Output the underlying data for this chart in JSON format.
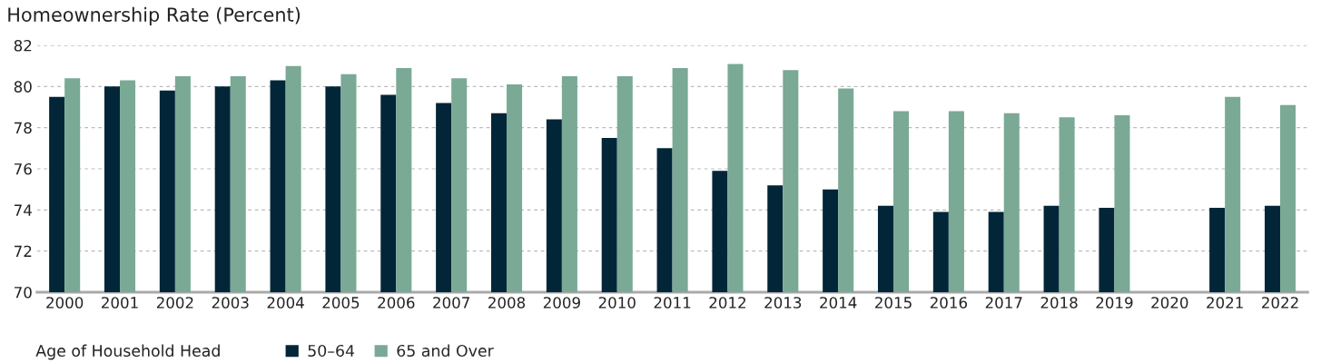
{
  "chart_data": {
    "type": "bar",
    "title": "Homeownership Rate (Percent)",
    "categories": [
      "2000",
      "2001",
      "2002",
      "2003",
      "2004",
      "2005",
      "2006",
      "2007",
      "2008",
      "2009",
      "2010",
      "2011",
      "2012",
      "2013",
      "2014",
      "2015",
      "2016",
      "2017",
      "2018",
      "2019",
      "2020",
      "2021",
      "2022"
    ],
    "series": [
      {
        "name": "50–64",
        "color": "#022638",
        "values": [
          79.5,
          80.0,
          79.8,
          80.0,
          80.3,
          80.0,
          79.6,
          79.2,
          78.7,
          78.4,
          77.5,
          77.0,
          75.9,
          75.2,
          75.0,
          74.2,
          73.9,
          73.9,
          74.2,
          74.1,
          null,
          74.1,
          74.2
        ]
      },
      {
        "name": "65 and Over",
        "color": "#7aa995",
        "values": [
          80.4,
          80.3,
          80.5,
          80.5,
          81.0,
          80.6,
          80.9,
          80.4,
          80.1,
          80.5,
          80.5,
          80.9,
          81.1,
          80.8,
          79.9,
          78.8,
          78.8,
          78.7,
          78.5,
          78.6,
          null,
          79.5,
          79.1
        ]
      }
    ],
    "legend_title": "Age of Household Head",
    "legend": "bottom left",
    "ylim": [
      70,
      82
    ],
    "yticks": [
      70,
      72,
      74,
      76,
      78,
      80,
      82
    ],
    "grid": "y"
  }
}
